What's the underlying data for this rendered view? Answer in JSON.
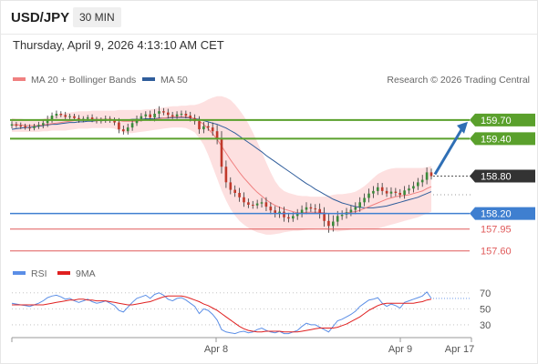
{
  "header": {
    "symbol": "USD/JPY",
    "timeframe": "30 MIN",
    "datetime": "Thursday, April 9, 2026 4:13:10 AM CET"
  },
  "colors": {
    "ma20": "#f08080",
    "ma50": "#2f5d9b",
    "bollinger_fill": "#fde0e0",
    "resistance": "#5aa02c",
    "support": "#3f7fd0",
    "target": "#e05a5a",
    "arrow": "#2f6fb5",
    "rsi": "#5b8ee6",
    "rsi_ma": "#e02020",
    "bull": "#3a8a3a",
    "bear": "#c0392b"
  },
  "chart_data": [
    {
      "type": "candlestick",
      "legend": {
        "placement": "top-left",
        "entries": [
          "MA 20 + Bollinger Bands",
          "MA 50"
        ]
      },
      "copyright": "Research © 2026 Trading Central",
      "x_ticks": [
        "Apr 8",
        "Apr 9",
        "Apr 17"
      ],
      "ylim": [
        157.45,
        160.15
      ],
      "current_price": "158.80",
      "levels": [
        {
          "value": 159.7,
          "label": "159.70",
          "kind": "resistance"
        },
        {
          "value": 159.4,
          "label": "159.40",
          "kind": "resistance"
        },
        {
          "value": 158.8,
          "label": "158.80",
          "kind": "current"
        },
        {
          "value": 158.2,
          "label": "158.20",
          "kind": "support"
        },
        {
          "value": 157.95,
          "label": "157.95",
          "kind": "target"
        },
        {
          "value": 157.6,
          "label": "157.60",
          "kind": "target"
        }
      ],
      "close": [
        159.63,
        159.61,
        159.6,
        159.58,
        159.57,
        159.6,
        159.62,
        159.65,
        159.7,
        159.77,
        159.8,
        159.78,
        159.75,
        159.76,
        159.73,
        159.7,
        159.72,
        159.74,
        159.71,
        159.68,
        159.7,
        159.72,
        159.69,
        159.66,
        159.55,
        159.52,
        159.58,
        159.65,
        159.72,
        159.76,
        159.79,
        159.74,
        159.8,
        159.84,
        159.82,
        159.78,
        159.76,
        159.79,
        159.8,
        159.77,
        159.73,
        159.68,
        159.55,
        159.6,
        159.58,
        159.52,
        159.4,
        158.95,
        158.7,
        158.58,
        158.53,
        158.46,
        158.38,
        158.34,
        158.33,
        158.36,
        158.38,
        158.31,
        158.25,
        158.2,
        158.23,
        158.14,
        158.12,
        158.16,
        158.2,
        158.26,
        158.3,
        158.28,
        158.27,
        158.2,
        158.08,
        158,
        158.07,
        158.16,
        158.18,
        158.22,
        158.26,
        158.3,
        158.38,
        158.45,
        158.52,
        158.56,
        158.62,
        158.56,
        158.52,
        158.55,
        158.53,
        158.5,
        158.57,
        158.6,
        158.64,
        158.7,
        158.74,
        158.86,
        158.8
      ],
      "wick": [
        0.05,
        0.04,
        0.05,
        0.04,
        0.05,
        0.04,
        0.05,
        0.06,
        0.07,
        0.05,
        0.05,
        0.04,
        0.05,
        0.04,
        0.04,
        0.05,
        0.04,
        0.04,
        0.05,
        0.04,
        0.04,
        0.05,
        0.04,
        0.05,
        0.07,
        0.06,
        0.06,
        0.06,
        0.05,
        0.05,
        0.05,
        0.06,
        0.07,
        0.08,
        0.05,
        0.06,
        0.05,
        0.05,
        0.05,
        0.05,
        0.06,
        0.06,
        0.08,
        0.07,
        0.06,
        0.08,
        0.1,
        0.12,
        0.1,
        0.08,
        0.07,
        0.08,
        0.08,
        0.06,
        0.06,
        0.06,
        0.07,
        0.08,
        0.07,
        0.07,
        0.08,
        0.08,
        0.07,
        0.06,
        0.07,
        0.07,
        0.08,
        0.06,
        0.07,
        0.09,
        0.1,
        0.12,
        0.1,
        0.08,
        0.07,
        0.07,
        0.07,
        0.08,
        0.08,
        0.07,
        0.08,
        0.08,
        0.07,
        0.07,
        0.06,
        0.07,
        0.06,
        0.06,
        0.07,
        0.06,
        0.07,
        0.07,
        0.08,
        0.08,
        0.06
      ],
      "ma20": [
        159.62,
        159.62,
        159.62,
        159.61,
        159.61,
        159.61,
        159.61,
        159.62,
        159.63,
        159.64,
        159.65,
        159.66,
        159.67,
        159.68,
        159.69,
        159.7,
        159.7,
        159.7,
        159.71,
        159.71,
        159.71,
        159.71,
        159.71,
        159.7,
        159.69,
        159.68,
        159.68,
        159.68,
        159.68,
        159.69,
        159.7,
        159.7,
        159.71,
        159.72,
        159.73,
        159.74,
        159.75,
        159.75,
        159.75,
        159.75,
        159.74,
        159.72,
        159.68,
        159.63,
        159.56,
        159.48,
        159.39,
        159.28,
        159.17,
        159.06,
        158.96,
        158.86,
        158.77,
        158.69,
        158.61,
        158.54,
        158.48,
        158.42,
        158.37,
        158.33,
        158.3,
        158.27,
        158.25,
        158.23,
        158.21,
        158.21,
        158.22,
        158.22,
        158.22,
        158.22,
        158.21,
        158.2,
        158.2,
        158.2,
        158.2,
        158.21,
        158.22,
        158.23,
        158.25,
        158.28,
        158.31,
        158.34,
        158.37,
        158.4,
        158.43,
        158.45,
        158.47,
        158.48,
        158.49,
        158.5,
        158.52,
        158.54,
        158.56,
        158.6,
        158.63
      ],
      "ma50": [
        159.55,
        159.56,
        159.57,
        159.58,
        159.58,
        159.59,
        159.6,
        159.61,
        159.62,
        159.63,
        159.63,
        159.64,
        159.65,
        159.66,
        159.66,
        159.67,
        159.67,
        159.68,
        159.68,
        159.69,
        159.69,
        159.69,
        159.7,
        159.7,
        159.7,
        159.7,
        159.7,
        159.71,
        159.71,
        159.71,
        159.72,
        159.72,
        159.72,
        159.73,
        159.73,
        159.73,
        159.74,
        159.74,
        159.74,
        159.74,
        159.73,
        159.72,
        159.71,
        159.69,
        159.67,
        159.65,
        159.63,
        159.6,
        159.57,
        159.53,
        159.49,
        159.44,
        159.39,
        159.34,
        159.29,
        159.24,
        159.19,
        159.13,
        159.08,
        159.03,
        158.98,
        158.93,
        158.88,
        158.83,
        158.78,
        158.73,
        158.68,
        158.64,
        158.59,
        158.55,
        158.51,
        158.47,
        158.43,
        158.4,
        158.37,
        158.35,
        158.33,
        158.31,
        158.3,
        158.29,
        158.29,
        158.29,
        158.3,
        158.31,
        158.32,
        158.34,
        158.36,
        158.38,
        158.4,
        158.42,
        158.44,
        158.46,
        158.49,
        158.52,
        158.55
      ],
      "bb_upper": [
        159.73,
        159.72,
        159.72,
        159.71,
        159.71,
        159.71,
        159.71,
        159.72,
        159.74,
        159.76,
        159.78,
        159.8,
        159.81,
        159.82,
        159.83,
        159.84,
        159.84,
        159.84,
        159.85,
        159.85,
        159.85,
        159.85,
        159.85,
        159.85,
        159.86,
        159.86,
        159.86,
        159.86,
        159.86,
        159.86,
        159.87,
        159.87,
        159.88,
        159.89,
        159.9,
        159.91,
        159.92,
        159.92,
        159.93,
        159.93,
        159.94,
        159.94,
        159.96,
        159.99,
        160.03,
        160.06,
        160.08,
        160.08,
        160.06,
        160.02,
        159.95,
        159.86,
        159.76,
        159.64,
        159.5,
        159.35,
        159.19,
        159.02,
        158.86,
        158.72,
        158.62,
        158.56,
        158.53,
        158.51,
        158.49,
        158.48,
        158.48,
        158.47,
        158.47,
        158.47,
        158.47,
        158.48,
        158.5,
        158.51,
        158.51,
        158.52,
        158.53,
        158.55,
        158.59,
        158.64,
        158.7,
        158.77,
        158.83,
        158.87,
        158.9,
        158.92,
        158.93,
        158.93,
        158.93,
        158.93,
        158.93,
        158.93,
        158.93,
        158.94,
        158.96
      ],
      "bb_lower": [
        159.51,
        159.51,
        159.51,
        159.51,
        159.51,
        159.51,
        159.51,
        159.52,
        159.52,
        159.53,
        159.53,
        159.53,
        159.53,
        159.54,
        159.55,
        159.56,
        159.56,
        159.56,
        159.57,
        159.57,
        159.57,
        159.57,
        159.57,
        159.56,
        159.53,
        159.5,
        159.49,
        159.49,
        159.5,
        159.51,
        159.52,
        159.53,
        159.54,
        159.55,
        159.56,
        159.57,
        159.58,
        159.58,
        159.58,
        159.57,
        159.54,
        159.5,
        159.41,
        159.3,
        159.14,
        158.95,
        158.76,
        158.57,
        158.41,
        158.27,
        158.17,
        158.08,
        158.02,
        157.97,
        157.93,
        157.9,
        157.88,
        157.86,
        157.86,
        157.87,
        157.88,
        157.9,
        157.91,
        157.92,
        157.92,
        157.93,
        157.94,
        157.95,
        157.96,
        157.96,
        157.95,
        157.93,
        157.92,
        157.91,
        157.92,
        157.93,
        157.94,
        157.95,
        157.95,
        157.95,
        157.95,
        157.95,
        157.96,
        157.98,
        158,
        158.02,
        158.04,
        158.06,
        158.08,
        158.1,
        158.12,
        158.14,
        158.17,
        158.2,
        158.23
      ]
    },
    {
      "type": "line",
      "legend": {
        "placement": "top-left",
        "entries": [
          "RSI",
          "9MA"
        ]
      },
      "y_ticks": [
        70,
        50,
        30
      ],
      "ylim": [
        14,
        80
      ],
      "rsi": [
        57,
        56,
        55,
        54,
        53,
        55,
        57,
        60,
        64,
        66,
        67,
        65,
        62,
        63,
        60,
        58,
        60,
        62,
        59,
        57,
        58,
        60,
        57,
        54,
        48,
        46,
        52,
        58,
        63,
        65,
        67,
        63,
        68,
        70,
        67,
        62,
        60,
        63,
        64,
        61,
        57,
        53,
        44,
        50,
        48,
        43,
        36,
        24,
        21,
        20,
        19,
        21,
        22,
        20,
        21,
        24,
        26,
        23,
        21,
        20,
        22,
        19,
        19,
        21,
        23,
        28,
        32,
        30,
        30,
        27,
        24,
        21,
        28,
        35,
        37,
        40,
        43,
        47,
        53,
        57,
        61,
        62,
        64,
        57,
        53,
        56,
        54,
        51,
        58,
        60,
        62,
        64,
        66,
        71,
        63
      ],
      "rsi_ma": [
        55,
        55,
        55,
        55,
        55,
        55,
        55,
        55,
        56,
        57,
        58,
        59,
        60,
        61,
        61,
        62,
        62,
        61,
        61,
        60,
        60,
        60,
        59,
        58,
        57,
        56,
        55,
        55,
        56,
        57,
        58,
        59,
        61,
        63,
        65,
        66,
        66,
        66,
        66,
        65,
        63,
        61,
        59,
        56,
        54,
        51,
        48,
        44,
        40,
        36,
        32,
        28,
        25,
        23,
        22,
        21,
        21,
        22,
        22,
        22,
        22,
        21,
        21,
        21,
        21,
        22,
        23,
        24,
        25,
        26,
        26,
        26,
        26,
        27,
        29,
        31,
        34,
        37,
        40,
        44,
        48,
        51,
        54,
        56,
        57,
        57,
        57,
        57,
        57,
        57,
        57,
        58,
        59,
        61,
        62
      ]
    }
  ]
}
